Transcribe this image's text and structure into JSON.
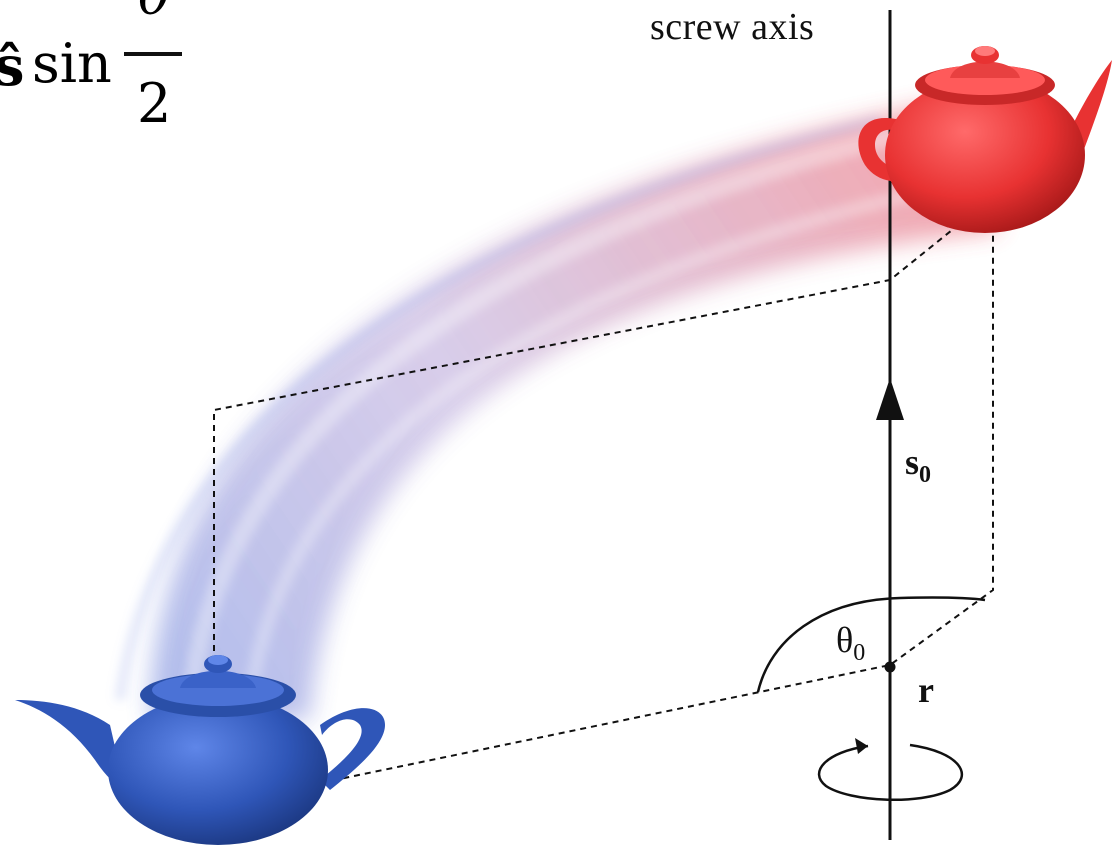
{
  "formula": {
    "vector_symbol": "ŝ",
    "function": "sin",
    "numerator": "θ",
    "denominator": "2"
  },
  "labels": {
    "screw_axis": "screw axis",
    "s0_base": "s",
    "s0_sub": "0",
    "theta_base": "θ",
    "theta_sub": "0",
    "r": "r"
  },
  "colors": {
    "start_teapot": "#2f56b8",
    "end_teapot": "#e83232",
    "lines": "#111111"
  }
}
